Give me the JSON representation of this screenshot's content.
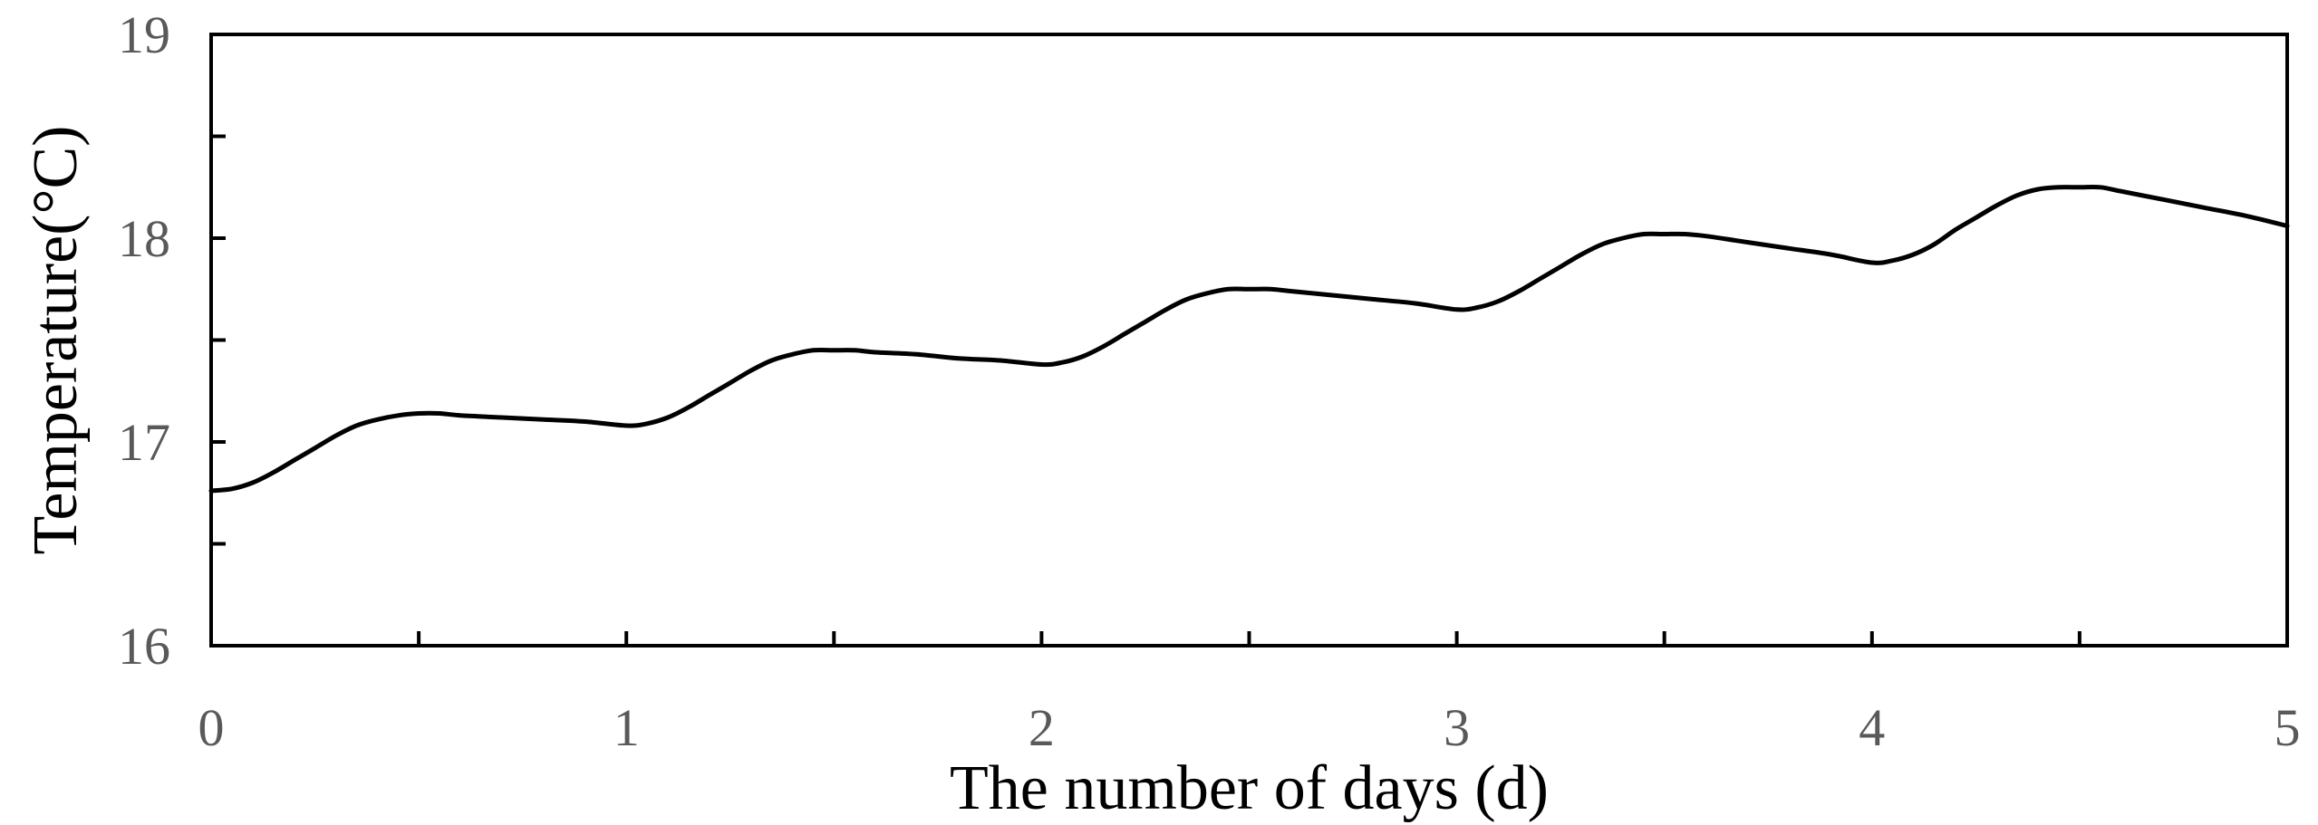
{
  "chart_data": {
    "type": "line",
    "title": "",
    "xlabel": "The number of days (d)",
    "ylabel": "Temperature(°C)",
    "xlim": [
      0,
      5
    ],
    "ylim": [
      16,
      19
    ],
    "x_ticks": [
      0,
      1,
      2,
      3,
      4,
      5
    ],
    "x_tick_labels": [
      "0",
      "1",
      "2",
      "3",
      "4",
      "5"
    ],
    "x_minor_ticks": [
      0.5,
      1.5,
      2.5,
      3.5,
      4.5
    ],
    "y_ticks": [
      16,
      17,
      18,
      19
    ],
    "y_tick_labels": [
      "16",
      "17",
      "18",
      "19"
    ],
    "y_minor_ticks": [
      16.5,
      17.5,
      18.5
    ],
    "grid": false,
    "legend": "none",
    "line_color": "#000000",
    "series": [
      {
        "x": [
          0,
          0.05,
          0.1,
          0.15,
          0.2,
          0.25,
          0.3,
          0.35,
          0.4,
          0.45,
          0.5,
          0.55,
          0.6,
          0.7,
          0.8,
          0.9,
          1.0,
          1.05,
          1.1,
          1.15,
          1.2,
          1.25,
          1.3,
          1.35,
          1.4,
          1.45,
          1.5,
          1.55,
          1.6,
          1.7,
          1.8,
          1.9,
          2.0,
          2.05,
          2.1,
          2.15,
          2.2,
          2.25,
          2.3,
          2.35,
          2.4,
          2.45,
          2.5,
          2.55,
          2.6,
          2.7,
          2.8,
          2.9,
          3.0,
          3.05,
          3.1,
          3.15,
          3.2,
          3.25,
          3.3,
          3.35,
          3.4,
          3.45,
          3.5,
          3.55,
          3.6,
          3.7,
          3.8,
          3.9,
          4.0,
          4.05,
          4.1,
          4.15,
          4.2,
          4.25,
          4.3,
          4.35,
          4.4,
          4.45,
          4.5,
          4.55,
          4.6,
          4.7,
          4.8,
          4.9,
          5.0
        ],
        "y": [
          16.76,
          16.77,
          16.8,
          16.85,
          16.91,
          16.97,
          17.03,
          17.08,
          17.11,
          17.13,
          17.14,
          17.14,
          17.13,
          17.12,
          17.11,
          17.1,
          17.08,
          17.09,
          17.12,
          17.17,
          17.23,
          17.29,
          17.35,
          17.4,
          17.43,
          17.45,
          17.45,
          17.45,
          17.44,
          17.43,
          17.41,
          17.4,
          17.38,
          17.39,
          17.42,
          17.47,
          17.53,
          17.59,
          17.65,
          17.7,
          17.73,
          17.75,
          17.75,
          17.75,
          17.74,
          17.72,
          17.7,
          17.68,
          17.65,
          17.66,
          17.69,
          17.74,
          17.8,
          17.86,
          17.92,
          17.97,
          18.0,
          18.02,
          18.02,
          18.02,
          18.01,
          17.98,
          17.95,
          17.92,
          17.88,
          17.89,
          17.92,
          17.97,
          18.04,
          18.1,
          18.16,
          18.21,
          18.24,
          18.25,
          18.25,
          18.25,
          18.23,
          18.19,
          18.15,
          18.11,
          18.06
        ]
      }
    ]
  }
}
